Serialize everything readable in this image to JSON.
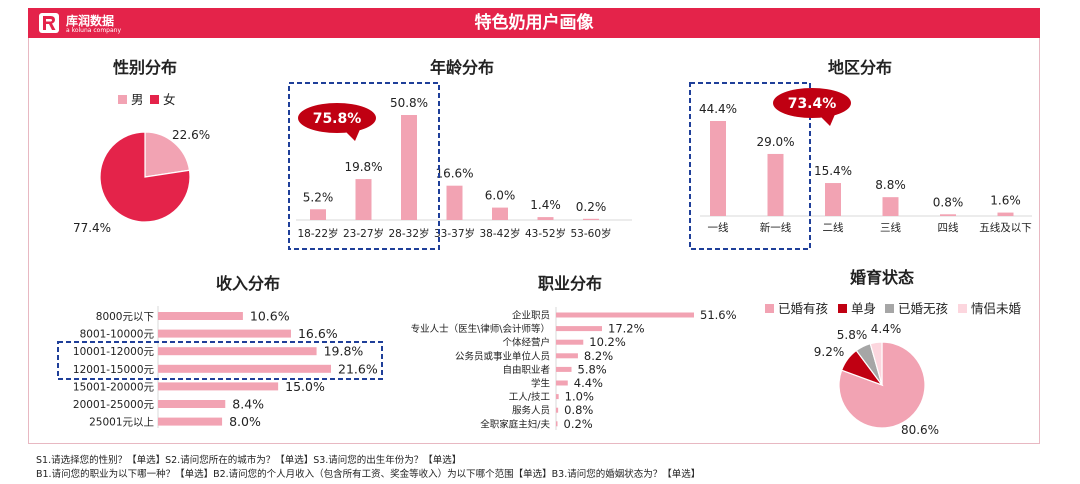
{
  "header": {
    "title": "特色奶用户画像",
    "logo_name": "库润数据",
    "logo_sub": "a koluna company"
  },
  "colors": {
    "brand_red": "#e4234a",
    "bar_pink": "#f2a3b3",
    "dark_red": "#c00012",
    "gray": "#a6a6a6",
    "light_pink": "#fcd6de",
    "dash_blue": "#1f3f99"
  },
  "footnotes": [
    "S1.请选择您的性别？【单选】S2.请问您所在的城市为？【单选】S3.请问您的出生年份为？【单选】",
    "B1.请问您的职业为以下哪一种？【单选】B2.请问您的个人月收入（包含所有工资、奖金等收入）为以下哪个范围【单选】B3.请问您的婚姻状态为？【单选】"
  ],
  "chart_data": [
    {
      "id": "gender",
      "type": "pie",
      "title": "性别分布",
      "legend": [
        "男",
        "女"
      ],
      "slices": [
        {
          "label": "男",
          "value": 22.6,
          "display": "22.6%",
          "color": "#f2a3b3"
        },
        {
          "label": "女",
          "value": 77.4,
          "display": "77.4%",
          "color": "#e4234a"
        }
      ]
    },
    {
      "id": "age",
      "type": "bar",
      "title": "年龄分布",
      "categories": [
        "18-22岁",
        "23-27岁",
        "28-32岁",
        "33-37岁",
        "38-42岁",
        "43-52岁",
        "53-60岁"
      ],
      "values": [
        5.2,
        19.8,
        50.8,
        16.6,
        6.0,
        1.4,
        0.2
      ],
      "labels": [
        "5.2%",
        "19.8%",
        "50.8%",
        "16.6%",
        "6.0%",
        "1.4%",
        "0.2%"
      ],
      "highlight": {
        "indices": [
          0,
          1,
          2
        ],
        "callout": "75.8%"
      }
    },
    {
      "id": "region",
      "type": "bar",
      "title": "地区分布",
      "categories": [
        "一线",
        "新一线",
        "二线",
        "三线",
        "四线",
        "五线及以下"
      ],
      "values": [
        44.4,
        29.0,
        15.4,
        8.8,
        0.8,
        1.6
      ],
      "labels": [
        "44.4%",
        "29.0%",
        "15.4%",
        "8.8%",
        "0.8%",
        "1.6%"
      ],
      "highlight": {
        "indices": [
          0,
          1
        ],
        "callout": "73.4%"
      }
    },
    {
      "id": "income",
      "type": "bar",
      "orientation": "horizontal",
      "title": "收入分布",
      "categories": [
        "8000元以下",
        "8001-10000元",
        "10001-12000元",
        "12001-15000元",
        "15001-20000元",
        "20001-25000元",
        "25001元以上"
      ],
      "values": [
        10.6,
        16.6,
        19.8,
        21.6,
        15.0,
        8.4,
        8.0
      ],
      "labels": [
        "10.6%",
        "16.6%",
        "19.8%",
        "21.6%",
        "15.0%",
        "8.4%",
        "8.0%"
      ],
      "highlight": {
        "indices": [
          2,
          3
        ]
      }
    },
    {
      "id": "occupation",
      "type": "bar",
      "orientation": "horizontal",
      "title": "职业分布",
      "categories": [
        "企业职员",
        "专业人士（医生\\律师\\会计师等）",
        "个体经营户",
        "公务员或事业单位人员",
        "自由职业者",
        "学生",
        "工人/技工",
        "服务人员",
        "全职家庭主妇/夫"
      ],
      "values": [
        51.6,
        17.2,
        10.2,
        8.2,
        5.8,
        4.4,
        1.0,
        0.8,
        0.2
      ],
      "labels": [
        "51.6%",
        "17.2%",
        "10.2%",
        "8.2%",
        "5.8%",
        "4.4%",
        "1.0%",
        "0.8%",
        "0.2%"
      ]
    },
    {
      "id": "marital",
      "type": "pie",
      "title": "婚育状态",
      "legend": [
        "已婚有孩",
        "单身",
        "已婚无孩",
        "情侣未婚"
      ],
      "slices": [
        {
          "label": "已婚有孩",
          "value": 80.6,
          "display": "80.6%",
          "color": "#f2a3b3"
        },
        {
          "label": "单身",
          "value": 9.2,
          "display": "9.2%",
          "color": "#c00012"
        },
        {
          "label": "已婚无孩",
          "value": 5.8,
          "display": "5.8%",
          "color": "#a6a6a6"
        },
        {
          "label": "情侣未婚",
          "value": 4.4,
          "display": "4.4%",
          "color": "#fcd6de"
        }
      ]
    }
  ]
}
